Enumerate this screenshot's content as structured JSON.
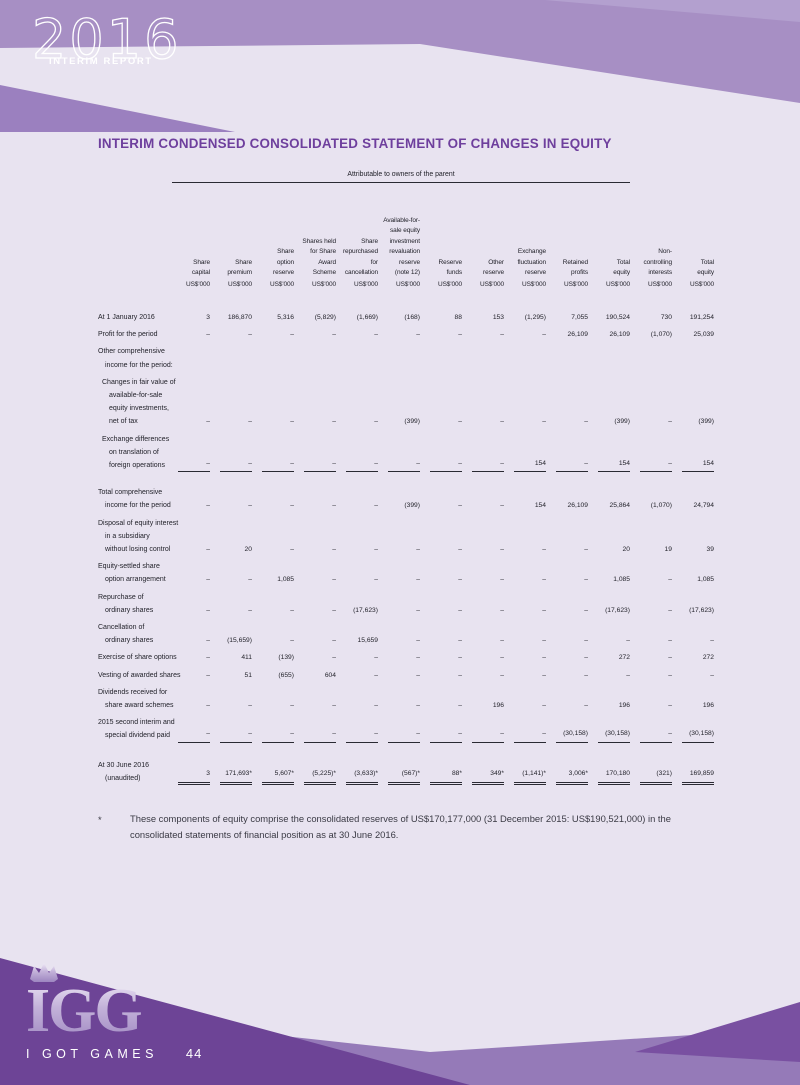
{
  "report": {
    "year": "2016",
    "subtitle": "INTERIM REPORT",
    "page_number": "44",
    "brand": {
      "logo_text": "IGG",
      "logo_caption": "I GOT GAMES"
    }
  },
  "colors": {
    "accent_title": "#6e3f9d",
    "page_background": "#e8e3f0",
    "band_top": "#a78fc4",
    "band_top_light": "#b3a0cf",
    "band_top_wedge": "#9b80bf",
    "footer_mid": "#957ab8",
    "footer_dark": "#6d4496",
    "footer_corner_dark": "#7950a1",
    "table_text": "#23232b"
  },
  "statement": {
    "title": "INTERIM CONDENSED CONSOLIDATED STATEMENT OF CHANGES IN EQUITY",
    "group_header": "Attributable to owners of the parent",
    "unit": "US$'000",
    "columns": [
      {
        "lines": [
          "Share",
          "capital"
        ]
      },
      {
        "lines": [
          "Share",
          "premium"
        ]
      },
      {
        "lines": [
          "Share",
          "option",
          "reserve"
        ]
      },
      {
        "lines": [
          "Shares held",
          "for Share",
          "Award",
          "Scheme"
        ]
      },
      {
        "lines": [
          "Share",
          "repurchased",
          "for",
          "cancellation"
        ]
      },
      {
        "lines": [
          "Available-for-",
          "sale equity",
          "investment",
          "revaluation",
          "reserve",
          "(note 12)"
        ]
      },
      {
        "lines": [
          "Reserve",
          "funds"
        ]
      },
      {
        "lines": [
          "Other",
          "reserve"
        ]
      },
      {
        "lines": [
          "Exchange",
          "fluctuation",
          "reserve"
        ]
      },
      {
        "lines": [
          "Retained",
          "profits"
        ]
      },
      {
        "lines": [
          "Total",
          "equity"
        ]
      },
      {
        "lines": [
          "Non-",
          "controlling",
          "interests"
        ]
      },
      {
        "lines": [
          "Total",
          "equity"
        ]
      }
    ],
    "rows": [
      {
        "label": [
          [
            "At 1 January 2016",
            0
          ]
        ],
        "values": [
          "3",
          "186,870",
          "5,316",
          "(5,829)",
          "(1,669)",
          "(168)",
          "88",
          "153",
          "(1,295)",
          "7,055",
          "190,524",
          "730",
          "191,254"
        ]
      },
      {
        "label": [
          [
            "Profit for the period",
            0
          ]
        ],
        "values": [
          "–",
          "–",
          "–",
          "–",
          "–",
          "–",
          "–",
          "–",
          "–",
          "26,109",
          "26,109",
          "(1,070)",
          "25,039"
        ]
      },
      {
        "label": [
          [
            "Other comprehensive",
            0
          ],
          [
            "income for the period:",
            7
          ]
        ],
        "values": null
      },
      {
        "label": [
          [
            "Changes in fair value of",
            4
          ],
          [
            "available-for-sale",
            11
          ],
          [
            "equity investments,",
            11
          ],
          [
            "net of tax",
            11
          ]
        ],
        "values": [
          "–",
          "–",
          "–",
          "–",
          "–",
          "(399)",
          "–",
          "–",
          "–",
          "–",
          "(399)",
          "–",
          "(399)"
        ]
      },
      {
        "label": [
          [
            "Exchange differences",
            4
          ],
          [
            "on translation of",
            11
          ],
          [
            "foreign operations",
            11
          ]
        ],
        "values": [
          "–",
          "–",
          "–",
          "–",
          "–",
          "–",
          "–",
          "–",
          "154",
          "–",
          "154",
          "–",
          "154"
        ],
        "rule": "single",
        "gap_after": 14
      },
      {
        "label": [
          [
            "Total comprehensive",
            0
          ],
          [
            "income for the period",
            7
          ]
        ],
        "values": [
          "–",
          "–",
          "–",
          "–",
          "–",
          "(399)",
          "–",
          "–",
          "154",
          "26,109",
          "25,864",
          "(1,070)",
          "24,794"
        ]
      },
      {
        "label": [
          [
            "Disposal of equity interest",
            0
          ],
          [
            "in a subsidiary",
            7
          ],
          [
            "without losing control",
            7
          ]
        ],
        "values": [
          "–",
          "20",
          "–",
          "–",
          "–",
          "–",
          "–",
          "–",
          "–",
          "–",
          "20",
          "19",
          "39"
        ]
      },
      {
        "label": [
          [
            "Equity-settled share",
            0
          ],
          [
            "option arrangement",
            7
          ]
        ],
        "values": [
          "–",
          "–",
          "1,085",
          "–",
          "–",
          "–",
          "–",
          "–",
          "–",
          "–",
          "1,085",
          "–",
          "1,085"
        ]
      },
      {
        "label": [
          [
            "Repurchase of",
            0
          ],
          [
            "ordinary shares",
            7
          ]
        ],
        "values": [
          "–",
          "–",
          "–",
          "–",
          "(17,623)",
          "–",
          "–",
          "–",
          "–",
          "–",
          "(17,623)",
          "–",
          "(17,623)"
        ]
      },
      {
        "label": [
          [
            "Cancellation of",
            0
          ],
          [
            "ordinary shares",
            7
          ]
        ],
        "values": [
          "–",
          "(15,659)",
          "–",
          "–",
          "15,659",
          "–",
          "–",
          "–",
          "–",
          "–",
          "–",
          "–",
          "–"
        ]
      },
      {
        "label": [
          [
            "Exercise of share options",
            0
          ]
        ],
        "values": [
          "–",
          "411",
          "(139)",
          "–",
          "–",
          "–",
          "–",
          "–",
          "–",
          "–",
          "272",
          "–",
          "272"
        ]
      },
      {
        "label": [
          [
            "Vesting of awarded shares",
            0
          ]
        ],
        "values": [
          "–",
          "51",
          "(655)",
          "604",
          "–",
          "–",
          "–",
          "–",
          "–",
          "–",
          "–",
          "–",
          "–"
        ]
      },
      {
        "label": [
          [
            "Dividends received for",
            0
          ],
          [
            "share award schemes",
            7
          ]
        ],
        "values": [
          "–",
          "–",
          "–",
          "–",
          "–",
          "–",
          "–",
          "196",
          "–",
          "–",
          "196",
          "–",
          "196"
        ]
      },
      {
        "label": [
          [
            "2015 second interim and",
            0
          ],
          [
            "special dividend paid",
            7
          ]
        ],
        "values": [
          "–",
          "–",
          "–",
          "–",
          "–",
          "–",
          "–",
          "–",
          "–",
          "(30,158)",
          "(30,158)",
          "–",
          "(30,158)"
        ],
        "rule": "single",
        "gap_after": 16
      },
      {
        "label": [
          [
            "At 30 June 2016",
            0
          ],
          [
            "(unaudited)",
            7
          ]
        ],
        "values": [
          "3",
          "171,693*",
          "5,607*",
          "(5,225)*",
          "(3,633)*",
          "(567)*",
          "88*",
          "349*",
          "(1,141)*",
          "3,006*",
          "170,180",
          "(321)",
          "169,859"
        ],
        "rule": "double"
      }
    ],
    "footnote": {
      "marker": "*",
      "text": "These components of equity comprise the consolidated reserves of US$170,177,000 (31 December 2015: US$190,521,000) in the consolidated statements of financial position as at 30 June 2016."
    }
  }
}
